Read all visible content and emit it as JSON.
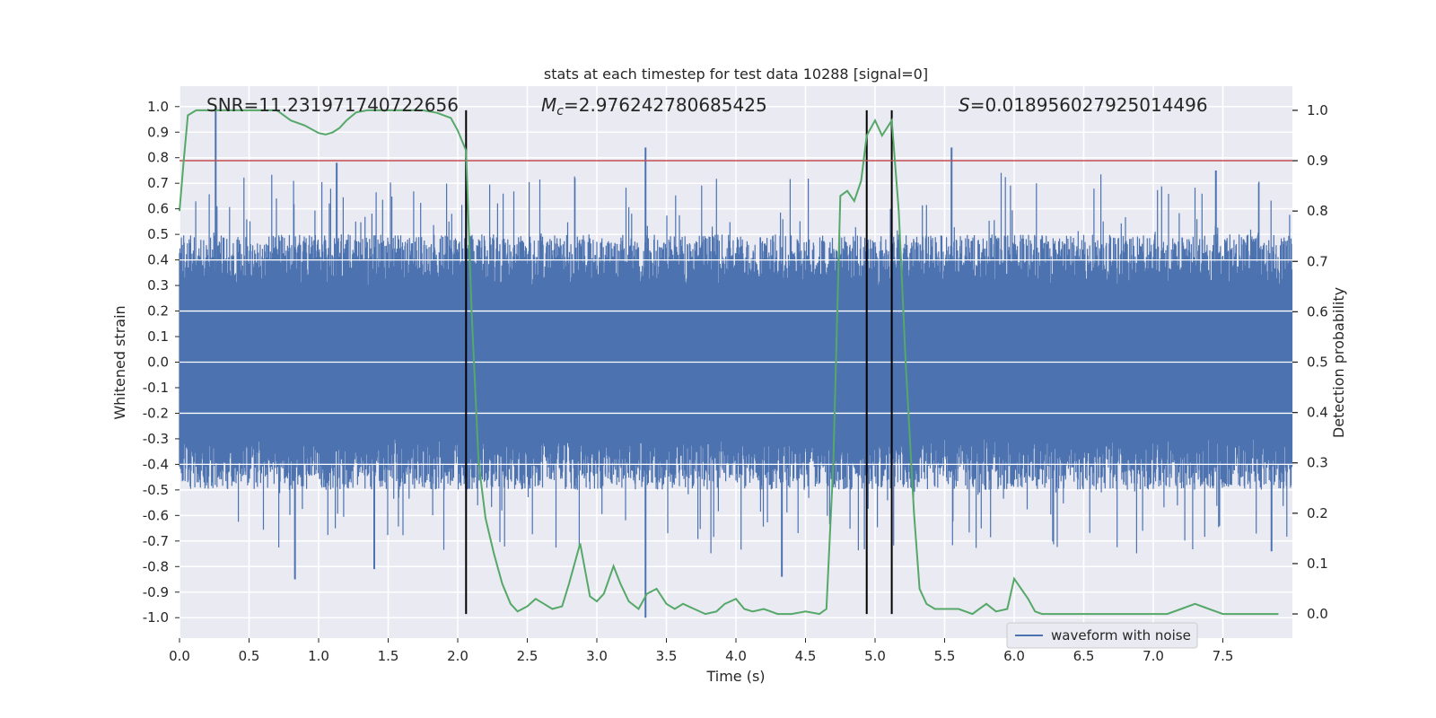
{
  "chart_data": {
    "type": "line",
    "title": "stats at each timestep for test data 10288 [signal=0]",
    "xlabel": "Time (s)",
    "ylabel_left": "Whitened strain",
    "ylabel_right": "Detection probability",
    "xlim": [
      0.0,
      8.0
    ],
    "ylim_left": [
      -1.08,
      1.08
    ],
    "ylim_right": [
      -0.048,
      1.048
    ],
    "x_ticks": [
      0.0,
      0.5,
      1.0,
      1.5,
      2.0,
      2.5,
      3.0,
      3.5,
      4.0,
      4.5,
      5.0,
      5.5,
      6.0,
      6.5,
      7.0,
      7.5
    ],
    "x_tick_labels": [
      "0.0",
      "0.5",
      "1.0",
      "1.5",
      "2.0",
      "2.5",
      "3.0",
      "3.5",
      "4.0",
      "4.5",
      "5.0",
      "5.5",
      "6.0",
      "6.5",
      "7.0",
      "7.5"
    ],
    "y_left_ticks": [
      1.0,
      0.9,
      0.8,
      0.7,
      0.6,
      0.5,
      0.4,
      0.3,
      0.2,
      0.1,
      0.0,
      -0.1,
      -0.2,
      -0.3,
      -0.4,
      -0.5,
      -0.6,
      -0.7,
      -0.8,
      -0.9,
      -1.0
    ],
    "y_left_tick_labels": [
      "1.0",
      "0.9",
      "0.8",
      "0.7",
      "0.6",
      "0.5",
      "0.4",
      "0.3",
      "0.2",
      "0.1",
      "0.0",
      "-0.1",
      "-0.2",
      "-0.3",
      "-0.4",
      "-0.5",
      "-0.6",
      "-0.7",
      "-0.8",
      "-0.9",
      "-1.0"
    ],
    "y_right_ticks": [
      1.0,
      0.9,
      0.8,
      0.7,
      0.6,
      0.5,
      0.4,
      0.3,
      0.2,
      0.1,
      0.0
    ],
    "y_right_tick_labels": [
      "1.0",
      "0.9",
      "0.8",
      "0.7",
      "0.6",
      "0.5",
      "0.4",
      "0.3",
      "0.2",
      "0.1",
      "0.0"
    ],
    "annotations": {
      "snr": "SNR=11.231971740722656",
      "mc_symbol": "M",
      "mc_sub": "c",
      "mc_value": "=2.976242780685425",
      "s_symbol": "S",
      "s_value": "=0.018956027925014496"
    },
    "threshold": {
      "value": 0.9,
      "axis": "right",
      "color": "#c44e52"
    },
    "vertical_lines": [
      2.06,
      4.94,
      5.12
    ],
    "waveform": {
      "name": "waveform with noise",
      "color": "#4c72b0",
      "envelope_upper_range": [
        0.3,
        0.5
      ],
      "envelope_lower_range": [
        -0.5,
        -0.3
      ],
      "spikes": [
        {
          "x": 0.26,
          "y": 1.0
        },
        {
          "x": 0.83,
          "y": -0.85
        },
        {
          "x": 1.13,
          "y": 0.78
        },
        {
          "x": 1.4,
          "y": -0.81
        },
        {
          "x": 2.06,
          "y": 0.8
        },
        {
          "x": 3.35,
          "y": 0.84
        },
        {
          "x": 3.35,
          "y": -1.0
        },
        {
          "x": 4.33,
          "y": -0.84
        },
        {
          "x": 5.55,
          "y": 0.84
        },
        {
          "x": 7.45,
          "y": 0.75
        },
        {
          "x": 7.85,
          "y": -0.74
        }
      ]
    },
    "detection_probability": {
      "color": "#55a868",
      "x": [
        0.0,
        0.03,
        0.06,
        0.12,
        0.2,
        0.3,
        0.4,
        0.5,
        0.6,
        0.7,
        0.8,
        0.9,
        1.0,
        1.05,
        1.1,
        1.15,
        1.2,
        1.27,
        1.35,
        1.45,
        1.6,
        1.75,
        1.85,
        1.95,
        2.0,
        2.06,
        2.1,
        2.15,
        2.2,
        2.26,
        2.32,
        2.38,
        2.43,
        2.5,
        2.56,
        2.62,
        2.68,
        2.75,
        2.8,
        2.88,
        2.95,
        3.0,
        3.05,
        3.12,
        3.17,
        3.23,
        3.3,
        3.36,
        3.43,
        3.5,
        3.56,
        3.62,
        3.7,
        3.78,
        3.86,
        3.92,
        4.0,
        4.06,
        4.12,
        4.2,
        4.3,
        4.4,
        4.5,
        4.6,
        4.65,
        4.7,
        4.75,
        4.8,
        4.85,
        4.9,
        4.94,
        5.0,
        5.05,
        5.12,
        5.17,
        5.22,
        5.28,
        5.32,
        5.37,
        5.43,
        5.5,
        5.6,
        5.7,
        5.8,
        5.87,
        5.95,
        6.0,
        6.1,
        6.15,
        6.2,
        6.3,
        6.4,
        6.5,
        6.6,
        6.7,
        6.8,
        6.9,
        7.0,
        7.1,
        7.2,
        7.3,
        7.4,
        7.45,
        7.5,
        7.6,
        7.7,
        7.8,
        7.9
      ],
      "y": [
        0.8,
        0.9,
        0.99,
        1.0,
        1.0,
        1.0,
        1.0,
        1.0,
        1.0,
        1.0,
        0.98,
        0.97,
        0.955,
        0.952,
        0.956,
        0.965,
        0.98,
        0.996,
        1.0,
        1.0,
        1.0,
        1.0,
        0.995,
        0.985,
        0.96,
        0.92,
        0.6,
        0.3,
        0.19,
        0.12,
        0.06,
        0.02,
        0.005,
        0.015,
        0.03,
        0.02,
        0.01,
        0.015,
        0.06,
        0.14,
        0.035,
        0.025,
        0.04,
        0.095,
        0.06,
        0.025,
        0.01,
        0.04,
        0.05,
        0.02,
        0.01,
        0.02,
        0.01,
        0.0,
        0.005,
        0.02,
        0.03,
        0.01,
        0.005,
        0.01,
        0.0,
        0.0,
        0.005,
        0.0,
        0.01,
        0.3,
        0.83,
        0.84,
        0.82,
        0.86,
        0.95,
        0.98,
        0.95,
        0.98,
        0.8,
        0.5,
        0.2,
        0.05,
        0.02,
        0.01,
        0.01,
        0.01,
        0.0,
        0.02,
        0.005,
        0.01,
        0.07,
        0.03,
        0.005,
        0.0,
        0.0,
        0.0,
        0.0,
        0.0,
        0.0,
        0.0,
        0.0,
        0.0,
        0.0,
        0.01,
        0.02,
        0.01,
        0.005,
        0.0,
        0.0,
        0.0,
        0.0,
        0.0
      ]
    },
    "legend": {
      "entries": [
        "waveform with noise"
      ],
      "position": "lower-right"
    }
  }
}
